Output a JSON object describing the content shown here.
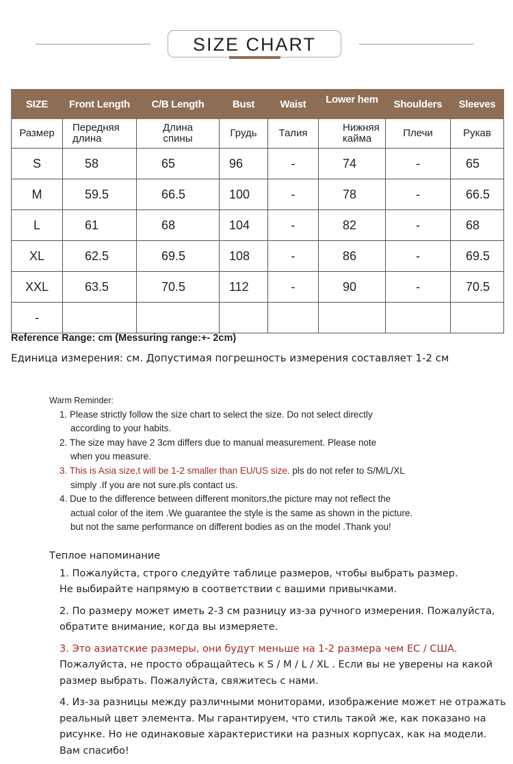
{
  "title": "SIZE CHART",
  "colors": {
    "header_bg": "#8d6e55",
    "accent": "#8d6e55",
    "warning_red": "#a12b2b"
  },
  "table": {
    "headers_en": [
      "SIZE",
      "Front Length",
      "C/B Length",
      "Bust",
      "Waist",
      "Lower hem",
      "Shoulders",
      "Sleeves"
    ],
    "headers_ru": [
      [
        "Размер"
      ],
      [
        "Передняя",
        "длина"
      ],
      [
        "Длина",
        "спины"
      ],
      [
        "Грудь"
      ],
      [
        "Талия"
      ],
      [
        "Нижняя",
        "кайма"
      ],
      [
        "Плечи"
      ],
      [
        "Рукав"
      ]
    ],
    "rows": [
      [
        "S",
        "58",
        "65",
        "96",
        "-",
        "74",
        "-",
        "65"
      ],
      [
        "M",
        "59.5",
        "66.5",
        "100",
        "-",
        "78",
        "-",
        "66.5"
      ],
      [
        "L",
        "61",
        "68",
        "104",
        "-",
        "82",
        "-",
        "68"
      ],
      [
        "XL",
        "62.5",
        "69.5",
        "108",
        "-",
        "86",
        "-",
        "69.5"
      ],
      [
        "XXL",
        "63.5",
        "70.5",
        "112",
        "-",
        "90",
        "-",
        "70.5"
      ],
      [
        "-",
        "",
        "",
        "",
        "",
        "",
        "",
        ""
      ]
    ]
  },
  "reference_en": "Reference Range: cm (Messuring range:+- 2cm)",
  "reference_ru": "Единица измерения: см. Допустимая погрешность измерения составляет 1-2 см",
  "warm_reminder": {
    "heading": "Warm Reminder:",
    "items": [
      {
        "lines": [
          "1. Please strictly follow the size chart to select the size. Do not select directly",
          "according to your habits."
        ]
      },
      {
        "lines": [
          "2. The size may have 2 3cm differs due to manual measurement. Please note",
          "when you measure."
        ]
      },
      {
        "red": "3. This is Asia size,t will be 1-2 smaller than EU/US size.",
        "rest": " pls do not refer to S/M/L/XL",
        "line2": "simply .If you are not sure.pls contact us."
      },
      {
        "lines": [
          "4. Due to the difference between different monitors,the picture may not reflect the",
          "actual color of the item .We guarantee the style is the same as shown in the picture.",
          "but not the same performance on different bodies as on the model .Thank you!"
        ]
      }
    ]
  },
  "reminder_ru": {
    "heading": "Теплое напоминание",
    "items": [
      {
        "lines": [
          "1. Пожалуйста, строго следуйте таблице размеров, чтобы выбрать размер.",
          "Не выбирайте напрямую в соответствии с вашими привычками."
        ]
      },
      {
        "lines": [
          "2. По размеру может иметь 2-3 см разницу из-за ручного измерения. Пожалуйста,",
          "обратите внимание, когда вы измеряете."
        ]
      },
      {
        "red": "3. Это азиатские размеры, они будут меньше на 1-2 размера чем ЕС / США.",
        "lines": [
          "Пожалуйста, не просто обращайтесь к S / M / L / XL . Если вы не уверены на какой",
          "размер выбрать. Пожалуйста, свяжитесь с нами."
        ]
      },
      {
        "lines": [
          "4. Из-за разницы между различными мониторами, изображение может не отражать",
          "реальный цвет элемента. Мы гарантируем, что стиль такой же, как показано на",
          "рисунке. Но не одинаковые характеристики на разных корпусах, как на модели.",
          "Вам спасибо!"
        ]
      }
    ]
  }
}
